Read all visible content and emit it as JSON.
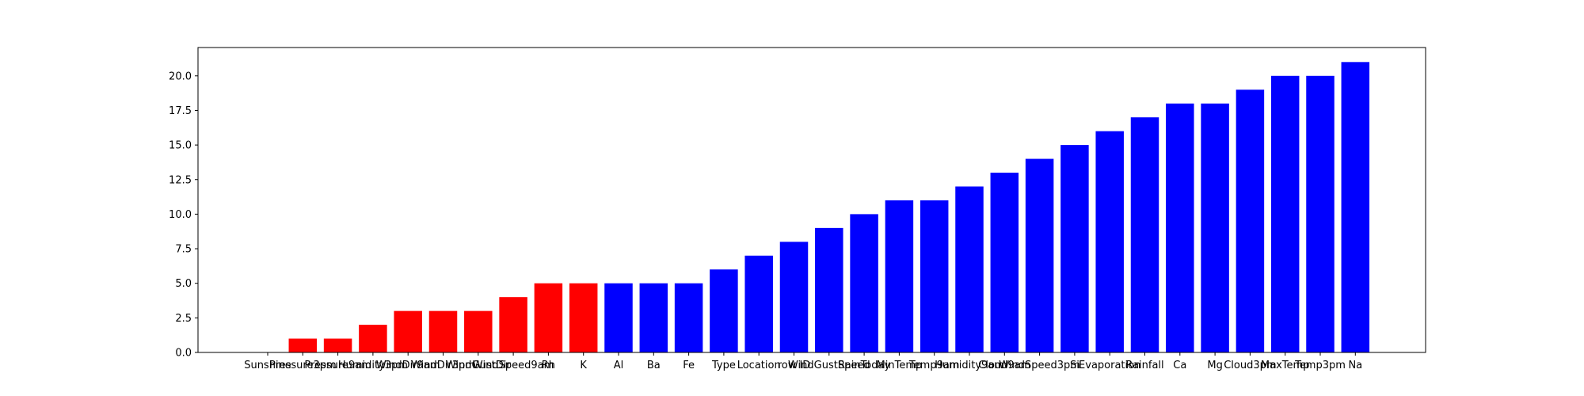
{
  "chart_data": {
    "type": "bar",
    "title": "",
    "xlabel": "",
    "ylabel": "",
    "ylim": [
      0,
      22.05
    ],
    "yticks": [
      "0.0",
      "2.5",
      "5.0",
      "7.5",
      "10.0",
      "12.5",
      "15.0",
      "17.5",
      "20.0"
    ],
    "grid": false,
    "categories": [
      "Sunshine",
      "Pressure3pm",
      "Pressure9am",
      "Humidity3pm",
      "WindDir9am",
      "WindDir3pm",
      "WindGustDir",
      "WindSpeed9am",
      "Rh",
      "K",
      "Al",
      "Ba",
      "Fe",
      "Type",
      "Location",
      "row ID",
      "WindGustSpeed",
      "RainToday",
      "MinTemp",
      "Temp9am",
      "Humidity9am",
      "Cloud9am",
      "WindSpeed3pm",
      "Si",
      "Evaporation",
      "Rainfall",
      "Ca",
      "Mg",
      "Cloud3pm",
      "MaxTemp",
      "Temp3pm",
      "Na"
    ],
    "values": [
      0,
      1,
      1,
      2,
      3,
      3,
      3,
      4,
      5,
      5,
      5,
      5,
      5,
      6,
      7,
      8,
      9,
      10,
      11,
      11,
      12,
      13,
      14,
      15,
      16,
      17,
      18,
      18,
      19,
      20,
      20,
      21
    ],
    "colors": [
      "#ff0000",
      "#ff0000",
      "#ff0000",
      "#ff0000",
      "#ff0000",
      "#ff0000",
      "#ff0000",
      "#ff0000",
      "#ff0000",
      "#ff0000",
      "#0000ff",
      "#0000ff",
      "#0000ff",
      "#0000ff",
      "#0000ff",
      "#0000ff",
      "#0000ff",
      "#0000ff",
      "#0000ff",
      "#0000ff",
      "#0000ff",
      "#0000ff",
      "#0000ff",
      "#0000ff",
      "#0000ff",
      "#0000ff",
      "#0000ff",
      "#0000ff",
      "#0000ff",
      "#0000ff",
      "#0000ff",
      "#0000ff"
    ]
  }
}
